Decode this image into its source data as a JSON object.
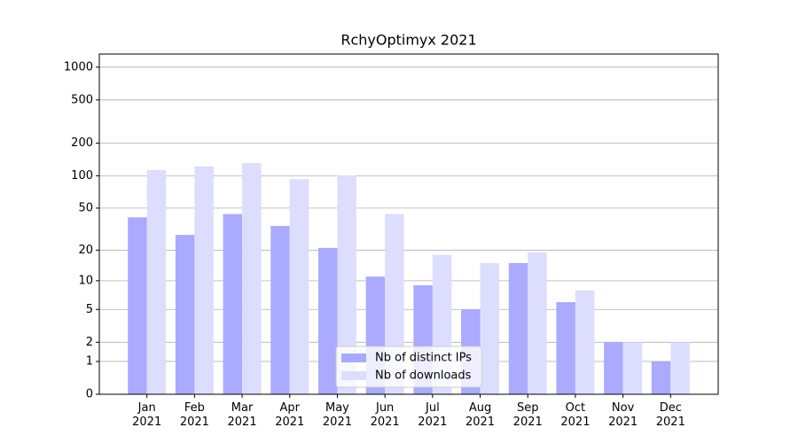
{
  "chart_data": {
    "type": "bar",
    "title": "RchyOptimyx 2021",
    "categories": [
      "Jan\n2021",
      "Feb\n2021",
      "Mar\n2021",
      "Apr\n2021",
      "May\n2021",
      "Jun\n2021",
      "Jul\n2021",
      "Aug\n2021",
      "Sep\n2021",
      "Oct\n2021",
      "Nov\n2021",
      "Dec\n2021"
    ],
    "series": [
      {
        "name": "Nb of distinct IPs",
        "color": "#aaaaff",
        "values": [
          41,
          28,
          44,
          34,
          21,
          11,
          9,
          5,
          15,
          6,
          2,
          1
        ]
      },
      {
        "name": "Nb of downloads",
        "color": "#ddddff",
        "values": [
          113,
          122,
          131,
          93,
          101,
          44,
          18,
          15,
          19,
          8,
          2,
          2
        ]
      }
    ],
    "yscale": "log1p",
    "ylim": [
      0,
      1320
    ],
    "yticks": [
      0,
      1,
      2,
      5,
      10,
      20,
      50,
      100,
      200,
      500,
      1000
    ],
    "grid": true,
    "legend": "lower center"
  }
}
